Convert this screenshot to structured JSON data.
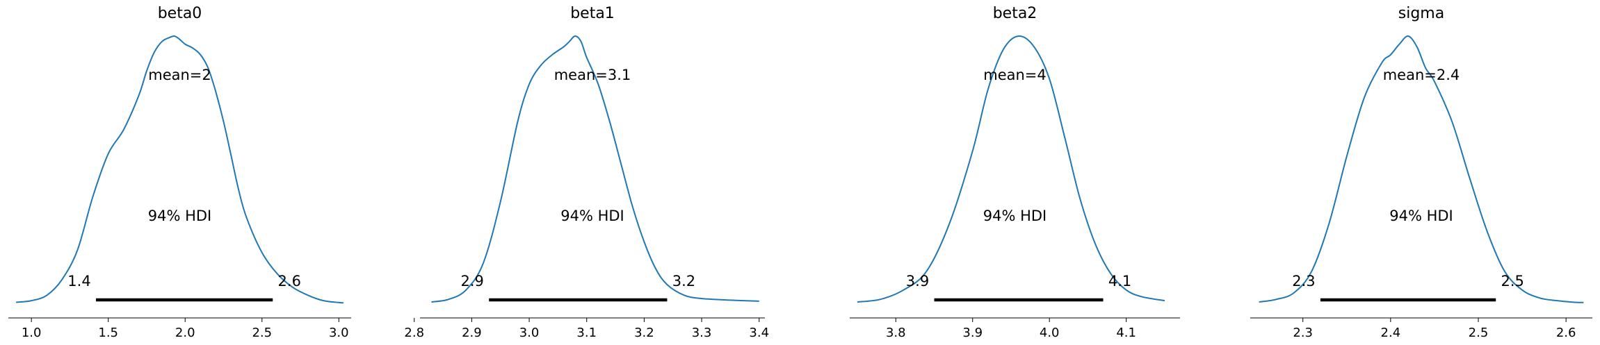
{
  "chart_data": [
    {
      "type": "area",
      "title": "beta0",
      "mean_label": "mean=2",
      "hdi_label": "94% HDI",
      "hdi_low_label": "1.4",
      "hdi_high_label": "2.6",
      "hdi": [
        1.42,
        2.57
      ],
      "xlim": [
        0.85,
        3.08
      ],
      "xticks": [
        1.0,
        1.5,
        2.0,
        2.5,
        3.0
      ],
      "xtick_labels": [
        "1.0",
        "1.5",
        "2.0",
        "2.5",
        "3.0"
      ],
      "x": [
        0.9,
        1.0,
        1.1,
        1.2,
        1.3,
        1.4,
        1.5,
        1.6,
        1.7,
        1.75,
        1.8,
        1.85,
        1.9,
        1.93,
        1.96,
        2.0,
        2.05,
        2.1,
        2.15,
        2.2,
        2.25,
        2.3,
        2.35,
        2.4,
        2.5,
        2.6,
        2.7,
        2.8,
        2.9,
        3.0,
        3.03
      ],
      "density": [
        0.004,
        0.01,
        0.03,
        0.09,
        0.2,
        0.4,
        0.56,
        0.65,
        0.78,
        0.87,
        0.94,
        0.98,
        0.995,
        1.0,
        0.99,
        0.97,
        0.955,
        0.93,
        0.88,
        0.79,
        0.68,
        0.55,
        0.42,
        0.32,
        0.19,
        0.11,
        0.06,
        0.03,
        0.01,
        0.003,
        0.002
      ]
    },
    {
      "type": "area",
      "title": "beta1",
      "mean_label": "mean=3.1",
      "hdi_label": "94% HDI",
      "hdi_low_label": "2.9",
      "hdi_high_label": "3.2",
      "hdi": [
        2.93,
        3.24
      ],
      "xlim": [
        2.81,
        3.41
      ],
      "xticks": [
        2.8,
        2.9,
        3.0,
        3.1,
        3.2,
        3.3,
        3.4
      ],
      "xtick_labels": [
        "2.8",
        "2.9",
        "3.0",
        "3.1",
        "3.2",
        "3.3",
        "3.4"
      ],
      "x": [
        2.83,
        2.86,
        2.89,
        2.92,
        2.95,
        2.98,
        3.0,
        3.02,
        3.04,
        3.06,
        3.07,
        3.08,
        3.09,
        3.1,
        3.12,
        3.14,
        3.16,
        3.18,
        3.2,
        3.22,
        3.24,
        3.27,
        3.3,
        3.35,
        3.4
      ],
      "density": [
        0.005,
        0.015,
        0.05,
        0.15,
        0.38,
        0.68,
        0.82,
        0.89,
        0.93,
        0.96,
        0.98,
        1.0,
        0.98,
        0.92,
        0.82,
        0.68,
        0.52,
        0.36,
        0.23,
        0.13,
        0.07,
        0.03,
        0.018,
        0.012,
        0.008
      ]
    },
    {
      "type": "area",
      "title": "beta2",
      "mean_label": "mean=4",
      "hdi_label": "94% HDI",
      "hdi_low_label": "3.9",
      "hdi_high_label": "4.1",
      "hdi": [
        3.85,
        4.07
      ],
      "xlim": [
        3.74,
        4.17
      ],
      "xticks": [
        3.8,
        3.9,
        4.0,
        4.1
      ],
      "xtick_labels": [
        "3.8",
        "3.9",
        "4.0",
        "4.1"
      ],
      "x": [
        3.75,
        3.78,
        3.81,
        3.84,
        3.87,
        3.9,
        3.92,
        3.94,
        3.96,
        3.98,
        4.0,
        4.02,
        4.04,
        4.06,
        4.08,
        4.1,
        4.12,
        4.15
      ],
      "density": [
        0.005,
        0.015,
        0.05,
        0.12,
        0.3,
        0.57,
        0.8,
        0.95,
        1.0,
        0.96,
        0.84,
        0.62,
        0.39,
        0.22,
        0.11,
        0.05,
        0.025,
        0.01
      ]
    },
    {
      "type": "area",
      "title": "sigma",
      "mean_label": "mean=2.4",
      "hdi_label": "94% HDI",
      "hdi_low_label": "2.3",
      "hdi_high_label": "2.5",
      "hdi": [
        2.32,
        2.52
      ],
      "xlim": [
        2.24,
        2.63
      ],
      "xticks": [
        2.3,
        2.4,
        2.5,
        2.6
      ],
      "xtick_labels": [
        "2.3",
        "2.4",
        "2.5",
        "2.6"
      ],
      "x": [
        2.25,
        2.27,
        2.29,
        2.31,
        2.33,
        2.35,
        2.37,
        2.39,
        2.4,
        2.41,
        2.42,
        2.43,
        2.44,
        2.45,
        2.47,
        2.49,
        2.51,
        2.53,
        2.55,
        2.57,
        2.59,
        2.61,
        2.62
      ],
      "density": [
        0.005,
        0.015,
        0.04,
        0.12,
        0.3,
        0.55,
        0.77,
        0.9,
        0.93,
        0.97,
        1.0,
        0.96,
        0.88,
        0.83,
        0.68,
        0.47,
        0.27,
        0.12,
        0.05,
        0.02,
        0.01,
        0.004,
        0.003
      ]
    }
  ],
  "colors": {
    "kde_line": "#1f77b4",
    "hdi_bar": "#000000",
    "axis": "#000000",
    "background": "#ffffff"
  }
}
